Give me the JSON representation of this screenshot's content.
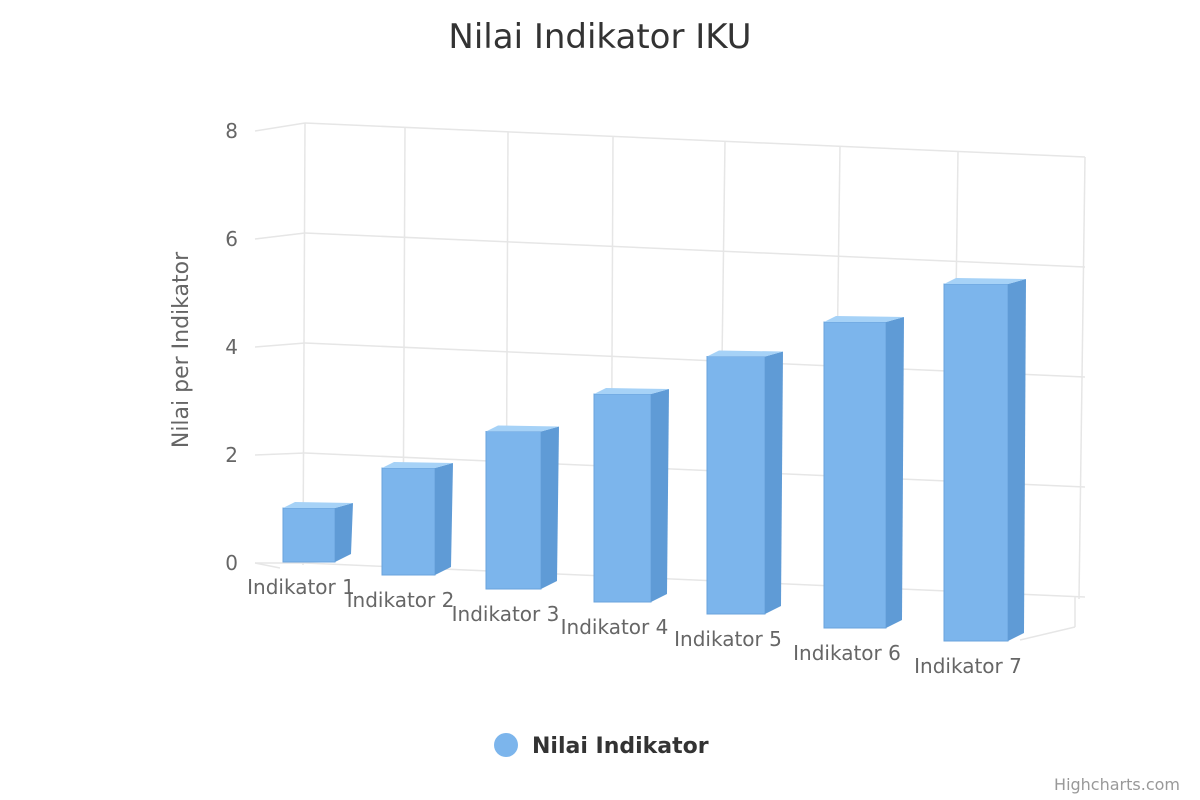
{
  "chart_data": {
    "type": "bar",
    "title": "Nilai Indikator IKU",
    "xlabel": "",
    "ylabel": "Nilai per Indikator",
    "categories": [
      "Indikator 1",
      "Indikator 2",
      "Indikator 3",
      "Indikator 4",
      "Indikator 5",
      "Indikator 6",
      "Indikator 7"
    ],
    "yticks": [
      "0",
      "2",
      "4",
      "6",
      "8"
    ],
    "ylim": [
      0,
      8
    ],
    "series": [
      {
        "name": "Nilai Indikator",
        "values": [
          1,
          2,
          3,
          4,
          5,
          6,
          7
        ],
        "color": "#7cb5ec"
      }
    ],
    "grid": true,
    "legend": "bottom-center",
    "three_d": true
  },
  "credits": "Highcharts.com"
}
